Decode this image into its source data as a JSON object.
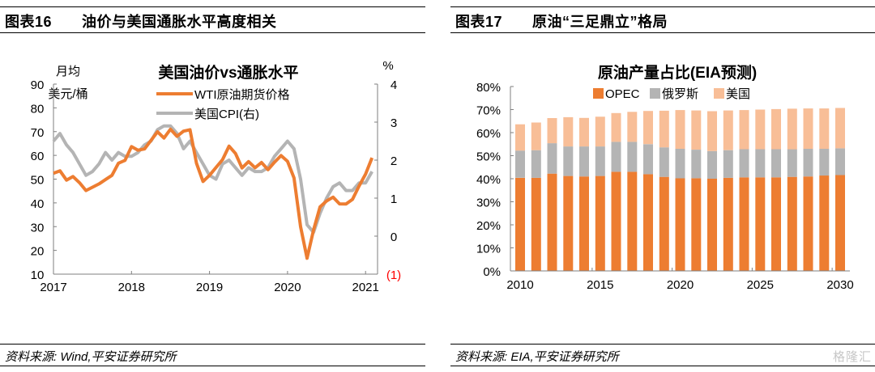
{
  "figures": [
    {
      "number_label": "图表16",
      "title": "油价与美国通胀水平高度相关",
      "source": "资料来源: Wind,平安证券研究所"
    },
    {
      "number_label": "图表17",
      "title": "原油“三足鼎立”格局",
      "source": "资料来源: EIA,平安证券研究所"
    }
  ],
  "watermark": "格隆汇",
  "chart_data": [
    {
      "type": "line",
      "title": "美国油价vs通胀水平",
      "left_axis_label_line1": "月均",
      "left_axis_label_line2": "美元/桶",
      "right_axis_label": "%",
      "x_ticks": [
        "2017",
        "2018",
        "2019",
        "2020",
        "2021"
      ],
      "x_range": [
        2017.0,
        2021.2
      ],
      "y_left": {
        "range": [
          10,
          90
        ],
        "ticks": [
          "10",
          "20",
          "30",
          "40",
          "50",
          "60",
          "70",
          "80",
          "90"
        ]
      },
      "y_right": {
        "range": [
          -1,
          4
        ],
        "ticks": [
          "(1)",
          "0",
          "1",
          "2",
          "3",
          "4"
        ],
        "negative_color": "#ff0000"
      },
      "legend": {
        "position": "top-center"
      },
      "grid": false,
      "series": [
        {
          "name": "WTI原油期货价格",
          "axis": "left",
          "color": "#ed7d31",
          "x_start": 2017.0,
          "step_months": 1,
          "values": [
            52.5,
            53.5,
            49.6,
            51.1,
            48.5,
            45.2,
            46.6,
            48.0,
            49.8,
            51.6,
            56.7,
            57.9,
            63.7,
            62.2,
            62.7,
            66.3,
            69.9,
            67.3,
            71.0,
            68.0,
            70.2,
            70.8,
            56.7,
            49.0,
            51.6,
            54.9,
            58.2,
            63.9,
            60.8,
            54.7,
            57.4,
            54.8,
            57.0,
            54.0,
            57.1,
            59.9,
            57.5,
            50.5,
            30.0,
            16.7,
            28.6,
            38.3,
            40.8,
            42.4,
            39.6,
            39.5,
            41.5,
            47.1,
            52.1,
            59.0
          ]
        },
        {
          "name": "美国CPI(右)",
          "axis": "right",
          "color": "#b4b4b4",
          "x_start": 2017.0,
          "step_months": 1,
          "values": [
            2.5,
            2.7,
            2.4,
            2.2,
            1.9,
            1.6,
            1.7,
            1.9,
            2.2,
            2.0,
            2.2,
            2.1,
            2.1,
            2.2,
            2.4,
            2.5,
            2.8,
            2.9,
            2.9,
            2.7,
            2.3,
            2.5,
            2.2,
            1.9,
            1.6,
            1.5,
            1.9,
            2.0,
            1.8,
            1.6,
            1.8,
            1.7,
            1.7,
            1.8,
            2.1,
            2.3,
            2.5,
            2.3,
            1.5,
            0.3,
            0.1,
            0.6,
            1.0,
            1.3,
            1.4,
            1.2,
            1.2,
            1.4,
            1.4,
            1.7
          ]
        }
      ]
    },
    {
      "type": "bar",
      "stacked": true,
      "title": "原油产量占比(EIA预测)",
      "categories": [
        2010,
        2011,
        2012,
        2013,
        2014,
        2015,
        2016,
        2017,
        2018,
        2019,
        2020,
        2021,
        2022,
        2023,
        2024,
        2025,
        2026,
        2027,
        2028,
        2029,
        2030
      ],
      "x_tick_labels": [
        "2010",
        "2015",
        "2020",
        "2025",
        "2030"
      ],
      "ylim": [
        0,
        80
      ],
      "y_ticks": [
        "0%",
        "10%",
        "20%",
        "30%",
        "40%",
        "50%",
        "60%",
        "70%",
        "80%"
      ],
      "legend": {
        "position": "top-center"
      },
      "grid": false,
      "series": [
        {
          "name": "OPEC",
          "color": "#ed7d31",
          "values": [
            40.4,
            40.4,
            42.2,
            41.2,
            41.0,
            41.2,
            43.0,
            43.0,
            42.0,
            40.8,
            40.2,
            40.2,
            40.0,
            40.4,
            40.6,
            40.6,
            40.6,
            40.8,
            41.0,
            41.4,
            41.6
          ]
        },
        {
          "name": "俄罗斯",
          "color": "#b4b4b4",
          "values": [
            11.8,
            12.0,
            13.2,
            12.8,
            13.0,
            12.8,
            13.0,
            13.0,
            13.0,
            12.8,
            12.8,
            12.4,
            12.0,
            12.0,
            12.2,
            12.2,
            12.2,
            12.0,
            12.0,
            11.6,
            11.6
          ]
        },
        {
          "name": "美国",
          "color": "#f8be97",
          "values": [
            11.4,
            12.0,
            10.9,
            12.7,
            12.4,
            12.9,
            12.5,
            13.0,
            14.4,
            15.9,
            16.8,
            17.0,
            17.3,
            17.2,
            17.0,
            17.2,
            17.4,
            17.6,
            17.5,
            17.5,
            17.5
          ]
        }
      ]
    }
  ]
}
